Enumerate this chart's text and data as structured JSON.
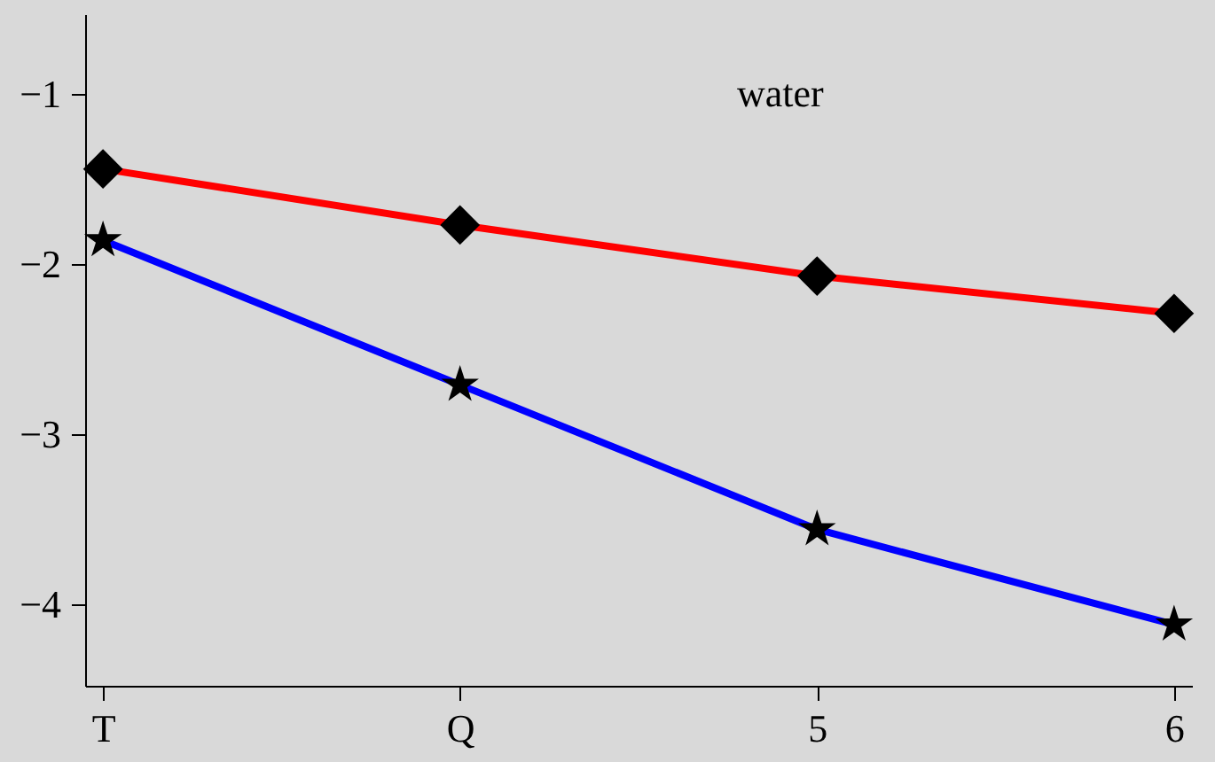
{
  "chart_data": {
    "type": "line",
    "categories": [
      "T",
      "Q",
      "5",
      "6"
    ],
    "series": [
      {
        "color": "#ff0000",
        "marker": "diamond",
        "values": [
          -1.44,
          -1.77,
          -2.07,
          -2.29
        ]
      },
      {
        "color": "#0000ff",
        "marker": "star",
        "values": [
          -1.86,
          -2.71,
          -3.56,
          -4.12
        ]
      }
    ],
    "ylim": [
      -4.48,
      -0.53
    ],
    "yticks": [
      {
        "value": -1,
        "label": "−1"
      },
      {
        "value": -2,
        "label": "−2"
      },
      {
        "value": -3,
        "label": "−3"
      },
      {
        "value": -4,
        "label": "−4"
      }
    ],
    "annotations": [
      "water"
    ],
    "line_style": "solid"
  }
}
